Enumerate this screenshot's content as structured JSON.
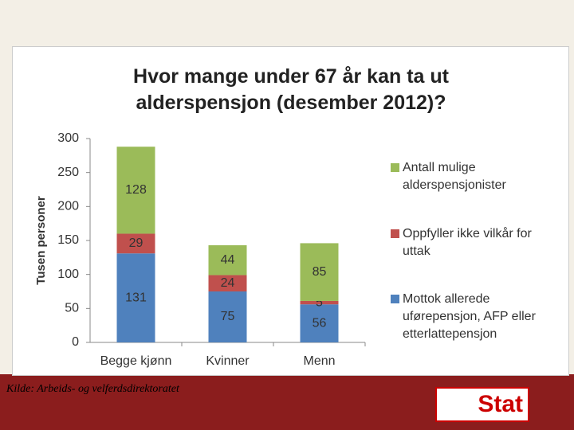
{
  "chart_data": {
    "type": "stacked-bar",
    "title": "Hvor mange under 67 år kan ta ut alderspensjon (desember 2012)?",
    "y_label": "Tusen personer",
    "categories": [
      "Begge kjønn",
      "Kvinner",
      "Menn"
    ],
    "series": [
      {
        "name": "Mottok allerede uførepensjon, AFP eller etterlattepensjon",
        "color": "#4f81bd",
        "values": [
          131,
          75,
          56
        ]
      },
      {
        "name": "Oppfyller ikke vilkår for uttak",
        "color": "#c0504d",
        "values": [
          29,
          24,
          5
        ]
      },
      {
        "name": "Antall mulige alderspensjonister",
        "color": "#9bbb59",
        "values": [
          128,
          44,
          85
        ]
      }
    ],
    "ylim": [
      0,
      300
    ],
    "yticks": [
      0,
      50,
      100,
      150,
      200,
      250,
      300
    ],
    "grid": false,
    "legend": "right",
    "source": "Kilde: Arbeids- og velferdsdirektoratet"
  },
  "logo": "Stat"
}
